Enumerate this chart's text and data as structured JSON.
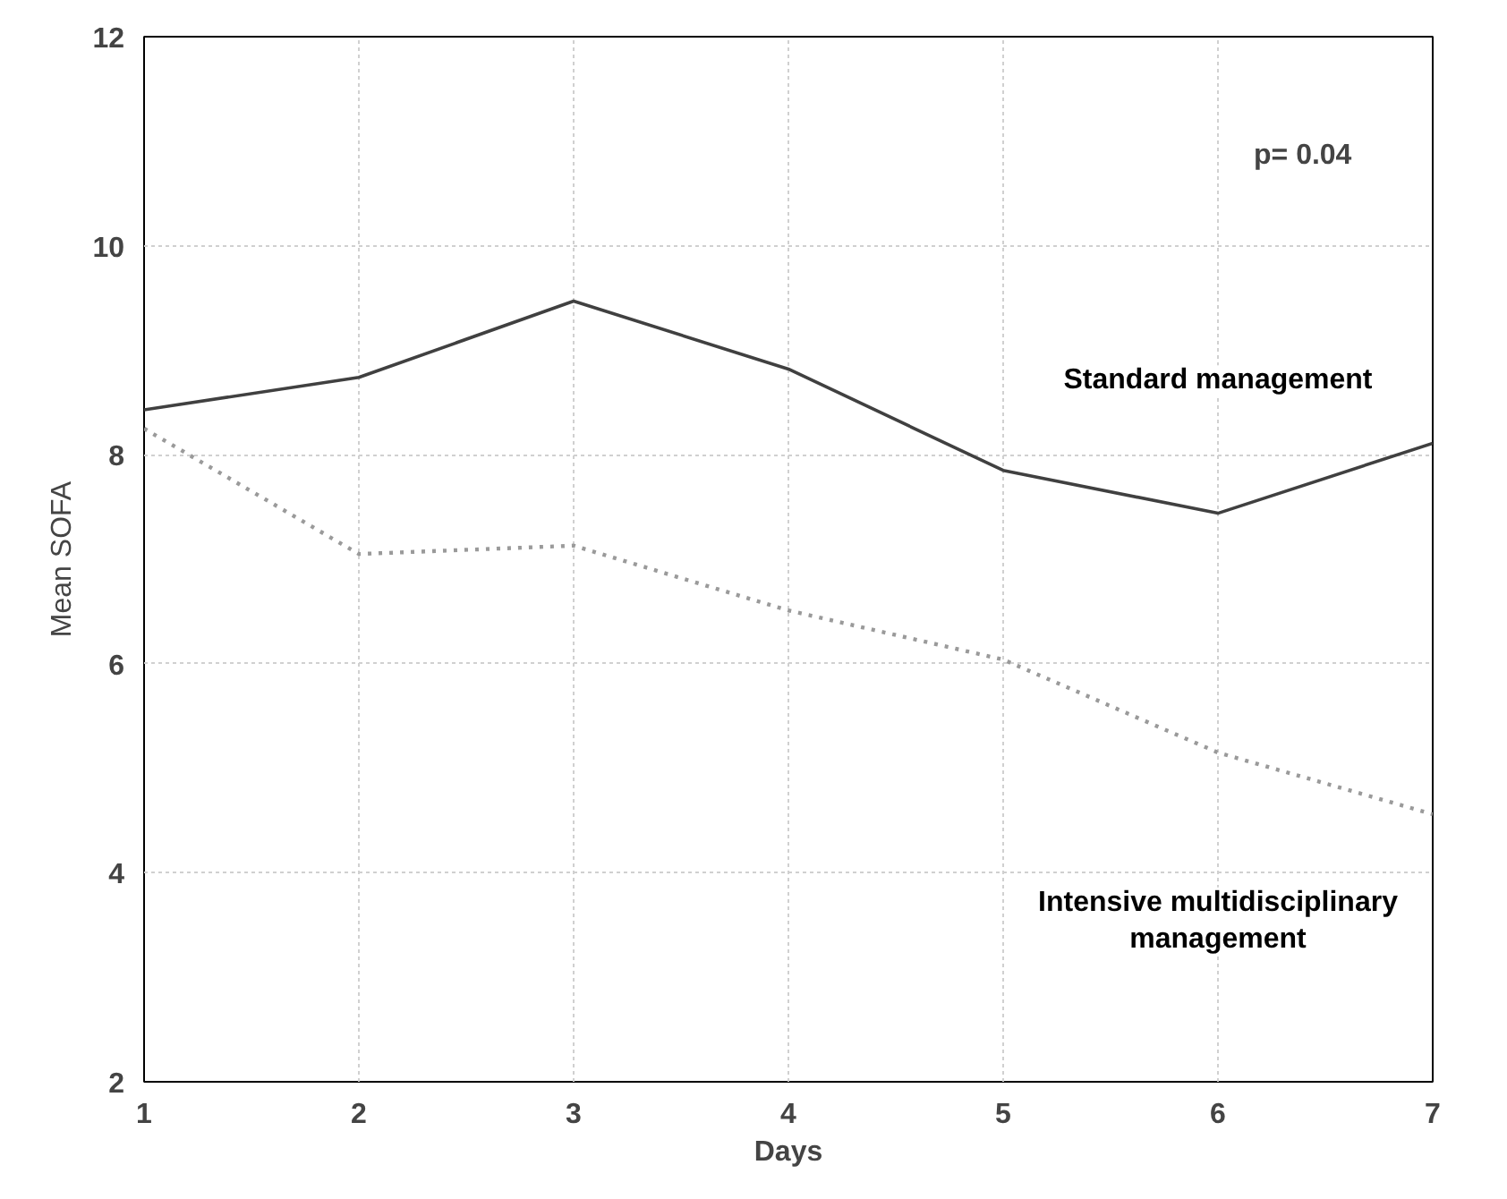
{
  "chart_data": {
    "type": "line",
    "xlabel": "Days",
    "ylabel": "Mean SOFA",
    "x": [
      1,
      2,
      3,
      4,
      5,
      6,
      7
    ],
    "series": [
      {
        "name": "Standard management",
        "color": "#404040",
        "line_style": "solid",
        "values": [
          8.43,
          8.74,
          9.47,
          8.82,
          7.85,
          7.44,
          8.11
        ]
      },
      {
        "name": "Intensive multidisciplinary management",
        "color": "#9a9a9a",
        "line_style": "dotted",
        "values": [
          8.25,
          7.05,
          7.13,
          6.51,
          6.04,
          5.15,
          4.56
        ]
      }
    ],
    "xlim": [
      1,
      7
    ],
    "xticks": [
      1,
      2,
      3,
      4,
      5,
      6,
      7
    ],
    "ylim": [
      2,
      12
    ],
    "yticks": [
      2,
      4,
      6,
      8,
      10,
      12
    ],
    "grid": true,
    "legend": false,
    "marker": "none",
    "annotations": [
      "p= 0.04"
    ]
  }
}
